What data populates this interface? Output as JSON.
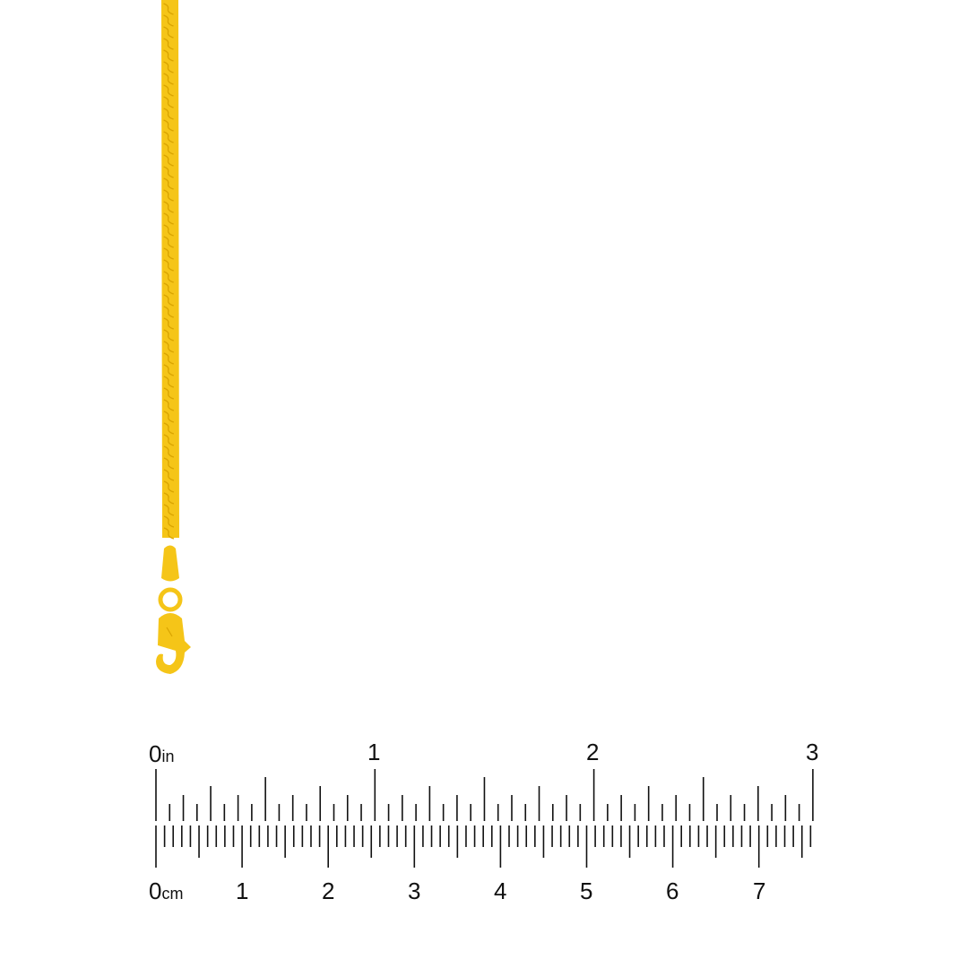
{
  "product": {
    "name": "gold-serpentine-chain",
    "color": "#F5C518",
    "shade": "#D9A400"
  },
  "ruler": {
    "inch_labels": [
      "0",
      "1",
      "2",
      "3"
    ],
    "inch_unit": "in",
    "cm_labels": [
      "0",
      "1",
      "2",
      "3",
      "4",
      "5",
      "6",
      "7"
    ],
    "cm_unit": "cm",
    "inch_max": 3,
    "inch_subdivisions": 16,
    "cm_max_mm": 76
  }
}
